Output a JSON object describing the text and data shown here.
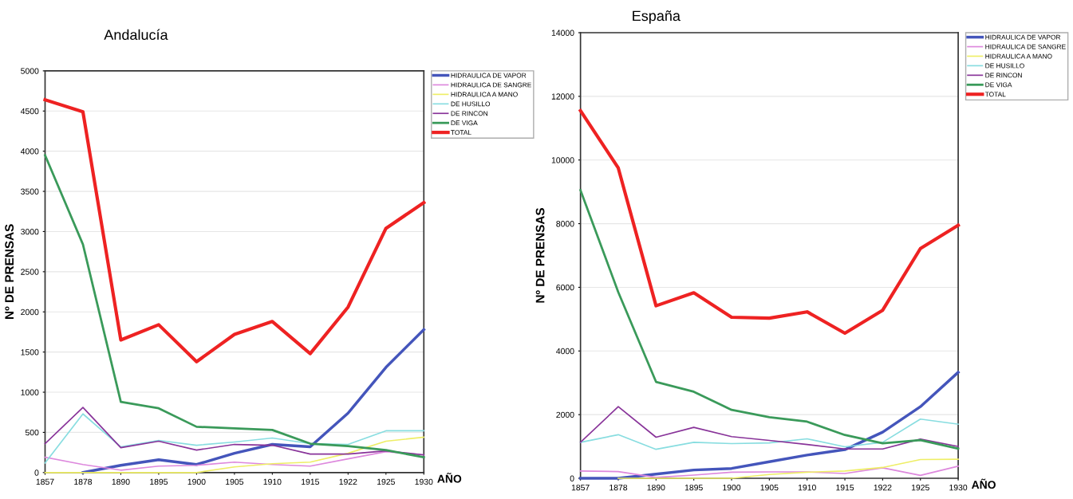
{
  "chart_data": [
    {
      "type": "line",
      "title": "Andalucía",
      "xlabel": "AÑO",
      "ylabel": "Nº DE PRENSAS",
      "categories": [
        "1857",
        "1878",
        "1890",
        "1895",
        "1900",
        "1905",
        "1910",
        "1915",
        "1922",
        "1925",
        "1930"
      ],
      "ylim": [
        0,
        5000
      ],
      "yticks": [
        0,
        500,
        1000,
        1500,
        2000,
        2500,
        3000,
        3500,
        4000,
        4500,
        5000
      ],
      "grid": "y",
      "legend": "top right",
      "marker": "none",
      "series": [
        {
          "name": "HIDRAULICA DE VAPOR",
          "color": "#4455bb",
          "values": [
            null,
            0,
            90,
            160,
            100,
            240,
            350,
            320,
            740,
            1310,
            1780
          ]
        },
        {
          "name": "HIDRAULICA DE SANGRE",
          "color": "#dd88dd",
          "values": [
            190,
            100,
            30,
            80,
            90,
            130,
            100,
            80,
            170,
            260,
            220
          ]
        },
        {
          "name": "HIDRAULICA A MANO",
          "color": "#eeee66",
          "values": [
            0,
            0,
            0,
            0,
            0,
            70,
            110,
            130,
            240,
            390,
            440
          ]
        },
        {
          "name": "DE HUSILLO",
          "color": "#88dde0",
          "values": [
            120,
            730,
            320,
            400,
            340,
            380,
            430,
            360,
            350,
            520,
            520
          ]
        },
        {
          "name": "DE RINCON",
          "color": "#883399",
          "values": [
            360,
            810,
            310,
            390,
            280,
            350,
            340,
            230,
            230,
            270,
            220
          ]
        },
        {
          "name": "DE VIGA",
          "color": "#3a9a5a",
          "values": [
            3950,
            2840,
            880,
            800,
            570,
            550,
            530,
            360,
            330,
            280,
            190
          ]
        },
        {
          "name": "TOTAL",
          "color": "#ee2222",
          "values": [
            4640,
            4490,
            1650,
            1840,
            1380,
            1720,
            1880,
            1480,
            2060,
            3040,
            3360
          ]
        }
      ]
    },
    {
      "type": "line",
      "title": "España",
      "xlabel": "AÑO",
      "ylabel": "Nº DE PRENSAS",
      "categories": [
        "1857",
        "1878",
        "1890",
        "1895",
        "1900",
        "1905",
        "1910",
        "1915",
        "1922",
        "1925",
        "1930"
      ],
      "ylim": [
        0,
        14000
      ],
      "yticks": [
        0,
        2000,
        4000,
        6000,
        8000,
        10000,
        12000,
        14000
      ],
      "grid": "y",
      "legend": "top right",
      "marker": "none",
      "series": [
        {
          "name": "HIDRAULICA DE VAPOR",
          "color": "#4455bb",
          "values": [
            0,
            0,
            130,
            260,
            310,
            520,
            730,
            900,
            1450,
            2250,
            3330
          ]
        },
        {
          "name": "HIDRAULICA DE SANGRE",
          "color": "#dd88dd",
          "values": [
            230,
            210,
            30,
            100,
            190,
            200,
            200,
            150,
            330,
            90,
            380
          ]
        },
        {
          "name": "HIDRAULICA A MANO",
          "color": "#eeee66",
          "values": [
            null,
            0,
            0,
            0,
            0,
            120,
            190,
            230,
            340,
            590,
            600
          ]
        },
        {
          "name": "DE HUSILLO",
          "color": "#88dde0",
          "values": [
            1130,
            1370,
            910,
            1130,
            1090,
            1110,
            1240,
            990,
            1130,
            1860,
            1700
          ]
        },
        {
          "name": "DE RINCON",
          "color": "#883399",
          "values": [
            1130,
            2250,
            1290,
            1600,
            1310,
            1190,
            1060,
            920,
            920,
            1230,
            1000
          ]
        },
        {
          "name": "DE VIGA",
          "color": "#3a9a5a",
          "values": [
            9050,
            5850,
            3030,
            2720,
            2150,
            1920,
            1780,
            1360,
            1100,
            1200,
            930
          ]
        },
        {
          "name": "TOTAL",
          "color": "#ee2222",
          "values": [
            11550,
            9750,
            5420,
            5830,
            5060,
            5030,
            5230,
            4560,
            5280,
            7220,
            7950
          ]
        }
      ]
    }
  ]
}
